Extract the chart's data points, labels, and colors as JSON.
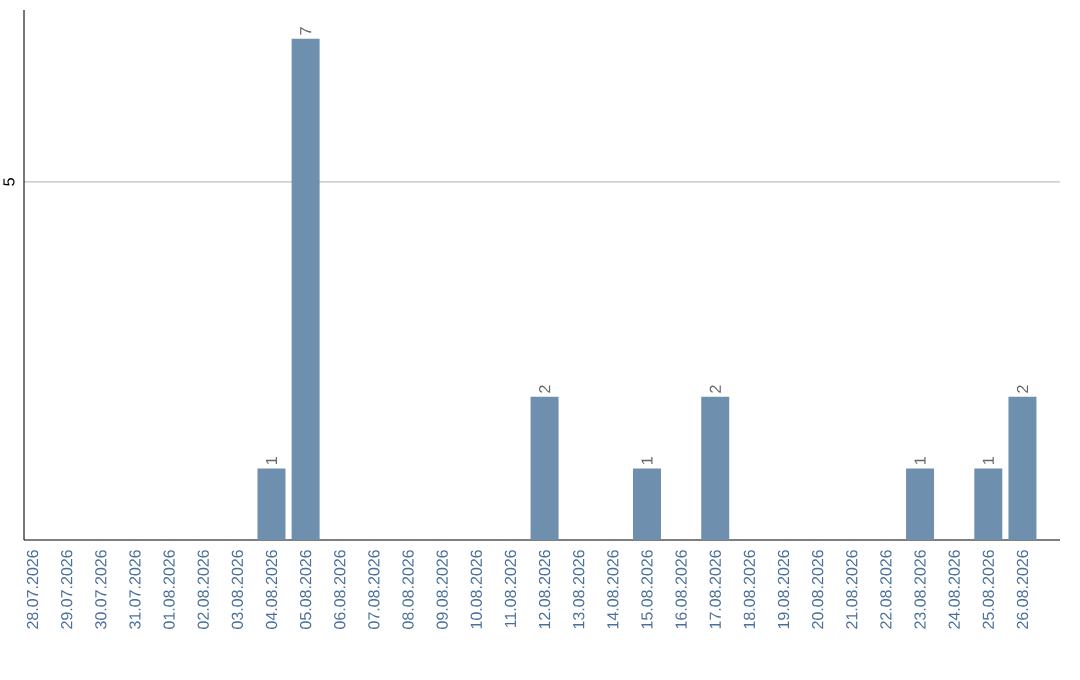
{
  "chart_data": {
    "type": "bar",
    "categories": [
      "28.07.2026",
      "29.07.2026",
      "30.07.2026",
      "31.07.2026",
      "01.08.2026",
      "02.08.2026",
      "03.08.2026",
      "04.08.2026",
      "05.08.2026",
      "06.08.2026",
      "07.08.2026",
      "08.08.2026",
      "09.08.2026",
      "10.08.2026",
      "11.08.2026",
      "12.08.2026",
      "13.08.2026",
      "14.08.2026",
      "15.08.2026",
      "16.08.2026",
      "17.08.2026",
      "18.08.2026",
      "19.08.2026",
      "20.08.2026",
      "21.08.2026",
      "22.08.2026",
      "23.08.2026",
      "24.08.2026",
      "25.08.2026",
      "26.08.2026"
    ],
    "values": [
      0,
      0,
      0,
      0,
      0,
      0,
      0,
      1,
      7,
      0,
      0,
      0,
      0,
      0,
      0,
      2,
      0,
      0,
      1,
      0,
      2,
      0,
      0,
      0,
      0,
      0,
      1,
      0,
      1,
      2
    ],
    "value_labels": [
      null,
      null,
      null,
      null,
      null,
      null,
      null,
      "1",
      "7",
      null,
      null,
      null,
      null,
      null,
      null,
      "2",
      null,
      null,
      "1",
      null,
      "2",
      null,
      null,
      null,
      null,
      null,
      "1",
      null,
      "1",
      "2"
    ],
    "color": "#6f8faf",
    "ylim": [
      0,
      7.4
    ],
    "yticks": [
      5
    ],
    "grid": "y"
  }
}
